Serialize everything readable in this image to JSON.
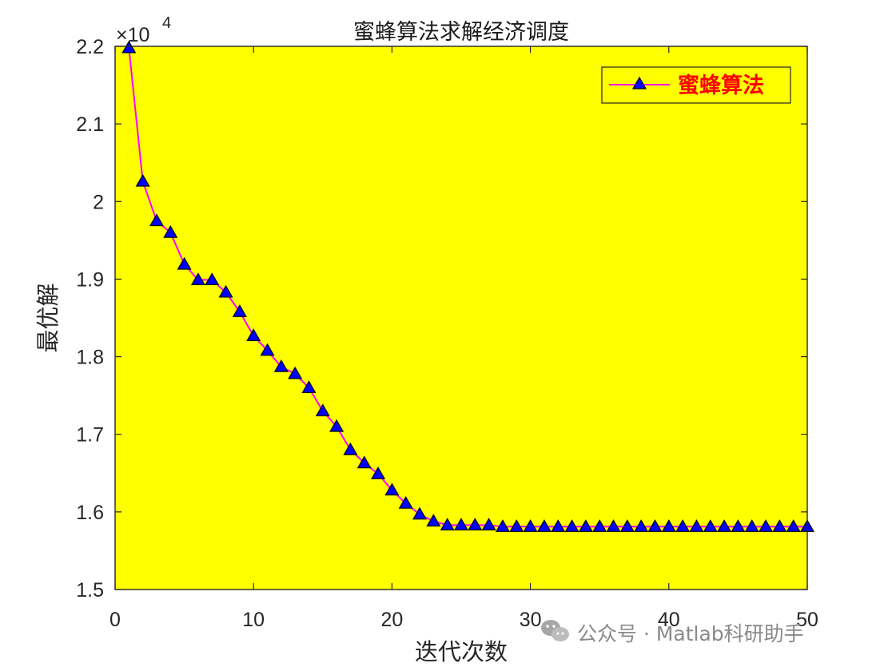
{
  "colors": {
    "plot_bg": "#ffff00",
    "line": "#ff00ff",
    "marker_fill": "#0000ff",
    "marker_edge": "#000000",
    "axis": "#262626",
    "legend_text": "#ff0000",
    "watermark": "#8a8a8a"
  },
  "chart_data": {
    "type": "line",
    "title": "蜜蜂算法求解经济调度",
    "xlabel": "迭代次数",
    "ylabel": "最优解",
    "xlim": [
      0,
      50
    ],
    "ylim": [
      15000,
      22000
    ],
    "y_exponent_label": "×10",
    "y_exponent_power": "4",
    "x_ticks": [
      0,
      10,
      20,
      30,
      40,
      50
    ],
    "x_tick_labels": [
      "0",
      "10",
      "20",
      "30",
      "40",
      "50"
    ],
    "y_ticks": [
      15000,
      16000,
      17000,
      18000,
      19000,
      20000,
      21000,
      22000
    ],
    "y_tick_labels": [
      "1.5",
      "1.6",
      "1.7",
      "1.8",
      "1.9",
      "2",
      "2.1",
      "2.2"
    ],
    "grid": false,
    "legend_position": "top-right",
    "marker": "triangle",
    "series": [
      {
        "name": "蜜蜂算法",
        "x": [
          1,
          2,
          3,
          4,
          5,
          6,
          7,
          8,
          9,
          10,
          11,
          12,
          13,
          14,
          15,
          16,
          17,
          18,
          19,
          20,
          21,
          22,
          23,
          24,
          25,
          26,
          27,
          28,
          29,
          30,
          31,
          32,
          33,
          34,
          35,
          36,
          37,
          38,
          39,
          40,
          41,
          42,
          43,
          44,
          45,
          46,
          47,
          48,
          49,
          50
        ],
        "values": [
          21980,
          20260,
          19750,
          19600,
          19190,
          18990,
          18990,
          18830,
          18580,
          18270,
          18080,
          17870,
          17780,
          17600,
          17300,
          17100,
          16800,
          16630,
          16490,
          16280,
          16110,
          15970,
          15880,
          15830,
          15830,
          15830,
          15830,
          15810,
          15810,
          15810,
          15810,
          15810,
          15810,
          15810,
          15810,
          15810,
          15810,
          15810,
          15810,
          15810,
          15810,
          15810,
          15810,
          15810,
          15810,
          15810,
          15810,
          15810,
          15810,
          15810
        ]
      }
    ]
  },
  "watermark": {
    "text": "公众号 · Matlab科研助手",
    "icon": "wechat-icon"
  }
}
